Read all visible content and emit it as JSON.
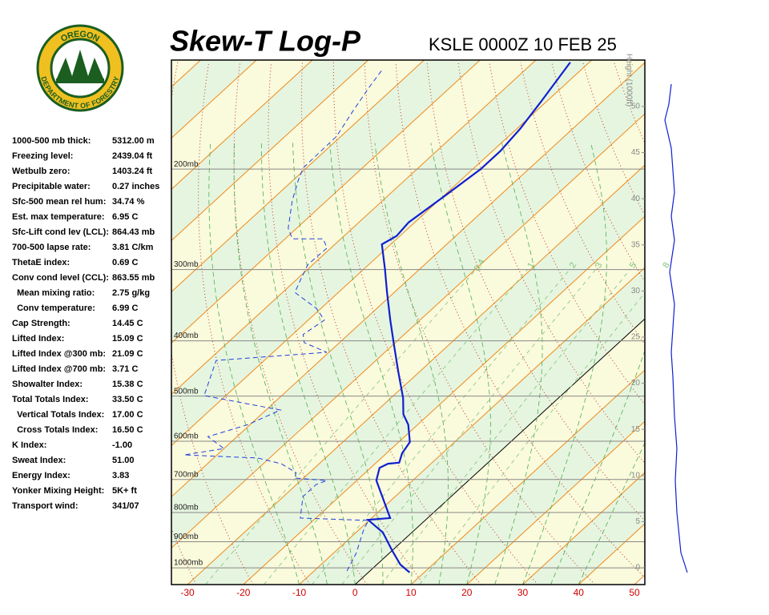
{
  "logo": {
    "top": "OREGON",
    "bottom": "DEPARTMENT OF FORESTRY"
  },
  "indices": [
    [
      "1000-500 mb thick:",
      "5312.00 m"
    ],
    [
      "Freezing level:",
      "2439.04 ft"
    ],
    [
      "Wetbulb zero:",
      "1403.24 ft"
    ],
    [
      "Precipitable water:",
      "0.27 inches"
    ],
    [
      "Sfc-500 mean rel hum:",
      "34.74 %"
    ],
    [
      "Est. max temperature:",
      "6.95 C"
    ],
    [
      "Sfc-Lift cond lev (LCL):",
      "864.43 mb"
    ],
    [
      "700-500 lapse rate:",
      "3.81 C/km"
    ],
    [
      "ThetaE index:",
      "0.69 C"
    ],
    [
      "Conv cond level (CCL):",
      "863.55 mb"
    ],
    [
      "  Mean mixing ratio:",
      "2.75 g/kg"
    ],
    [
      "  Conv temperature:",
      "6.99 C"
    ],
    [
      "Cap Strength:",
      "14.45 C"
    ],
    [
      "Lifted Index:",
      "15.09 C"
    ],
    [
      "Lifted Index @300 mb:",
      "21.09 C"
    ],
    [
      "Lifted Index @700 mb:",
      "3.71 C"
    ],
    [
      "Showalter Index:",
      "15.38 C"
    ],
    [
      "Total Totals Index:",
      "33.50 C"
    ],
    [
      "  Vertical Totals Index:",
      "17.00 C"
    ],
    [
      "  Cross Totals Index:",
      "16.50 C"
    ],
    [
      "K Index:",
      "-1.00"
    ],
    [
      "Sweat Index:",
      "51.00"
    ],
    [
      "Energy Index:",
      "3.83"
    ],
    [
      "Yonker Mixing Height:",
      "5K+ ft"
    ],
    [
      "Transport wind:",
      "341/07"
    ]
  ],
  "chart_data": {
    "type": "skew-t",
    "title": "Skew-T Log-P",
    "subtitle": "KSLE 0000Z 10 FEB 25",
    "xlim": [
      -32.87,
      51.86
    ],
    "xticks": [
      -30,
      -20,
      -10,
      0,
      10,
      20,
      30,
      40,
      50
    ],
    "ylim": [
      1070,
      128.8
    ],
    "log_y": true,
    "yticks": [
      {
        "value": 200,
        "label": "200mb"
      },
      {
        "value": 300,
        "label": "300mb"
      },
      {
        "value": 400,
        "label": "400mb"
      },
      {
        "value": 500,
        "label": "500mb"
      },
      {
        "value": 600,
        "label": "600mb"
      },
      {
        "value": 700,
        "label": "700mb"
      },
      {
        "value": 800,
        "label": "800mb"
      },
      {
        "value": 900,
        "label": "900mb"
      },
      {
        "value": 1000,
        "label": "1000mb"
      }
    ],
    "y2_label": "Height (1000ft)",
    "y2lim": [
      -1.82,
      55.03
    ],
    "y2ticks": [
      0,
      5,
      10,
      15,
      20,
      25,
      30,
      35,
      40,
      45,
      50
    ],
    "isotherm_color": "#ee8a1c",
    "zero_isotherm_color": "#000000",
    "dry_adiabat_color": "#c0392b",
    "moist_adiabat_color": "#4caf50",
    "mixing_ratio_color": "#7cc47c",
    "mixing_ratios": [
      {
        "value": 0.4,
        "label": "0.4"
      },
      1,
      2,
      3,
      5,
      8
    ],
    "series": [
      {
        "color": "#1020d0",
        "style": "solid",
        "pressure": [
          1019,
          987,
          934,
          867,
          824,
          818,
          703,
          668,
          657,
          654,
          630,
          602,
          561,
          538,
          504,
          454,
          406,
          368,
          329,
          299,
          271,
          262,
          248,
          223,
          200,
          186,
          170,
          152,
          130
        ],
        "values": [
          7.4,
          4.2,
          0.1,
          -5.2,
          -10.3,
          -6.7,
          -16.5,
          -18.4,
          -17.7,
          -15.9,
          -17.2,
          -18.0,
          -21.7,
          -24.6,
          -27.8,
          -33.7,
          -39.9,
          -45.3,
          -51.3,
          -56.3,
          -61.6,
          -60.6,
          -61.1,
          -59.8,
          -58.6,
          -58.6,
          -59.4,
          -61.0,
          -63.4
        ]
      },
      {
        "color": "#2040e0",
        "style": "dashed",
        "pressure": [
          1013,
          940,
          911,
          854,
          826,
          818,
          750,
          715,
          703,
          696,
          681,
          657,
          642,
          634,
          618,
          589,
          561,
          529,
          499,
          433,
          419,
          403,
          390,
          368,
          351,
          329,
          313,
          294,
          275,
          265,
          265,
          254,
          227,
          209,
          199,
          175,
          159,
          144,
          134
        ],
        "values": [
          -4.1,
          -6.0,
          -7.1,
          -9.3,
          -10.1,
          -22.8,
          -26.5,
          -26.5,
          -25.4,
          -31.6,
          -32.4,
          -36.8,
          -42.1,
          -55.9,
          -50.0,
          -55.2,
          -50.4,
          -47.4,
          -63.9,
          -68.6,
          -50.4,
          -56.3,
          -58.1,
          -57.1,
          -60.8,
          -67.8,
          -69.2,
          -70.9,
          -70.7,
          -73.2,
          -78.7,
          -81.5,
          -86.2,
          -89.1,
          -90.6,
          -90.8,
          -92.7,
          -94.5,
          -95.6
        ]
      }
    ]
  }
}
